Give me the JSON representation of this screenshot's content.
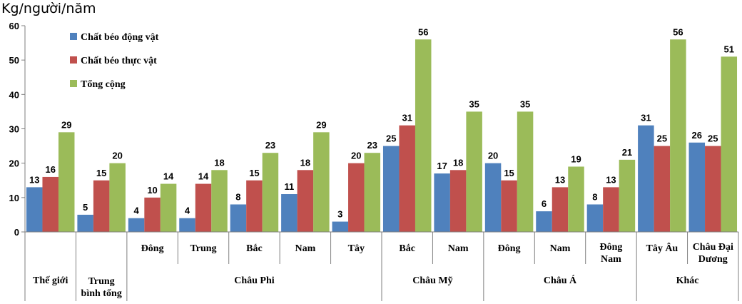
{
  "chart_data": {
    "type": "bar",
    "ylabel": "Kg/người/năm",
    "ylim": [
      0,
      60
    ],
    "yticks": [
      0,
      10,
      20,
      30,
      40,
      50,
      60
    ],
    "grid": false,
    "legend_position": "top-left",
    "data_labels": true,
    "categories": [
      {
        "sub": [
          "Thế giới"
        ],
        "group": ""
      },
      {
        "sub": [
          "Trung",
          "bình tổng"
        ],
        "group": ""
      },
      {
        "sub": [
          "Đông"
        ],
        "group": "Châu Phi"
      },
      {
        "sub": [
          "Trung"
        ],
        "group": "Châu Phi"
      },
      {
        "sub": [
          "Bắc"
        ],
        "group": "Châu Phi"
      },
      {
        "sub": [
          "Nam"
        ],
        "group": "Châu Phi"
      },
      {
        "sub": [
          "Tây"
        ],
        "group": "Châu Phi"
      },
      {
        "sub": [
          "Bắc"
        ],
        "group": "Châu Mỹ"
      },
      {
        "sub": [
          "Nam"
        ],
        "group": "Châu Mỹ"
      },
      {
        "sub": [
          "Đông"
        ],
        "group": "Châu Á"
      },
      {
        "sub": [
          "Nam"
        ],
        "group": "Châu Á"
      },
      {
        "sub": [
          "Đông",
          "Nam"
        ],
        "group": "Châu Á"
      },
      {
        "sub": [
          "Tây Âu"
        ],
        "group": "Khác"
      },
      {
        "sub": [
          "Châu Đại",
          "Dương"
        ],
        "group": "Khác"
      }
    ],
    "groups": [
      {
        "label": "Thế giới",
        "cats": [
          0
        ]
      },
      {
        "label": "Trung bình tổng",
        "cats": [
          1
        ]
      },
      {
        "label": "Châu Phi",
        "cats": [
          2,
          3,
          4,
          5,
          6
        ]
      },
      {
        "label": "Châu Mỹ",
        "cats": [
          7,
          8
        ]
      },
      {
        "label": "Châu Á",
        "cats": [
          9,
          10,
          11
        ]
      },
      {
        "label": "Khác",
        "cats": [
          12,
          13
        ]
      }
    ],
    "series": [
      {
        "name": "Chất béo động vật",
        "color": "#4F81BD",
        "values": [
          13,
          5,
          4,
          4,
          8,
          11,
          3,
          25,
          17,
          20,
          6,
          8,
          31,
          26
        ]
      },
      {
        "name": "Chất béo thực vật",
        "color": "#C0504D",
        "values": [
          16,
          15,
          10,
          14,
          15,
          18,
          20,
          31,
          18,
          15,
          13,
          13,
          25,
          25
        ]
      },
      {
        "name": "Tổng cộng",
        "color": "#9BBB59",
        "values": [
          29,
          20,
          14,
          18,
          23,
          29,
          23,
          56,
          35,
          35,
          19,
          21,
          56,
          51
        ]
      }
    ]
  }
}
